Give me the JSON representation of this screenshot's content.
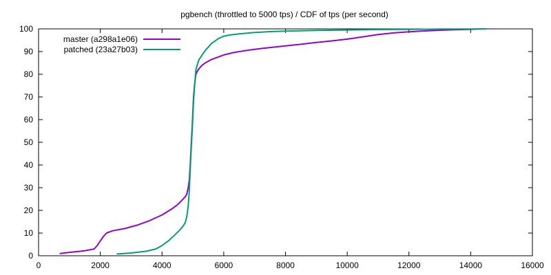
{
  "chart_data": {
    "type": "line",
    "title": "pgbench (throttled to 5000 tps) / CDF of tps (per second)",
    "xlabel": "",
    "ylabel": "",
    "xlim": [
      0,
      16000
    ],
    "ylim": [
      0,
      100
    ],
    "xticks": [
      0,
      2000,
      4000,
      6000,
      8000,
      10000,
      12000,
      14000,
      16000
    ],
    "yticks": [
      0,
      10,
      20,
      30,
      40,
      50,
      60,
      70,
      80,
      90,
      100
    ],
    "grid": false,
    "legend_position": "top-left",
    "series": [
      {
        "name": "master (a298a1e06)",
        "color": "#9400d3",
        "x": [
          700,
          1000,
          1500,
          1800,
          1900,
          2000,
          2100,
          2200,
          2400,
          2800,
          3200,
          3600,
          4000,
          4300,
          4500,
          4650,
          4750,
          4800,
          4850,
          4880,
          4900,
          4920,
          4950,
          4980,
          5000,
          5020,
          5050,
          5080,
          5100,
          5150,
          5200,
          5300,
          5400,
          5600,
          5800,
          6000,
          6300,
          6600,
          7000,
          7500,
          8000,
          8500,
          9000,
          9500,
          10000,
          10500,
          11000,
          11500,
          12000,
          12500,
          13000,
          13500,
          14000,
          14200,
          14500
        ],
        "y": [
          1,
          1.5,
          2.2,
          3,
          4.5,
          6.5,
          8.5,
          10,
          11,
          12,
          13.5,
          15.5,
          18,
          20.5,
          22.5,
          24.5,
          26,
          27,
          30,
          33,
          37,
          42,
          50,
          58,
          64,
          70,
          75,
          78,
          80,
          81.5,
          82.5,
          84,
          85,
          86.5,
          87.5,
          88.5,
          89.5,
          90.2,
          91,
          91.8,
          92.5,
          93.2,
          94,
          94.7,
          95.5,
          96.5,
          97.5,
          98.2,
          98.7,
          99.1,
          99.4,
          99.6,
          99.8,
          99.9,
          100
        ]
      },
      {
        "name": "patched (23a27b03)",
        "color": "#009e73",
        "x": [
          2550,
          3000,
          3500,
          3800,
          4000,
          4200,
          4400,
          4550,
          4650,
          4750,
          4800,
          4850,
          4880,
          4900,
          4920,
          4950,
          4980,
          5000,
          5020,
          5050,
          5080,
          5100,
          5150,
          5200,
          5300,
          5400,
          5500,
          5600,
          5700,
          5800,
          5900,
          6000,
          6200,
          6500,
          7000,
          7500,
          8000,
          9000,
          10000,
          11000,
          12000,
          13000,
          14000,
          14500
        ],
        "y": [
          0.8,
          1.2,
          2,
          3,
          4.5,
          6.5,
          9,
          11,
          12.5,
          14.5,
          17,
          22,
          28,
          34,
          40,
          48,
          56,
          62,
          68,
          74,
          79,
          82,
          84.5,
          86.5,
          88.5,
          90.5,
          92,
          93.5,
          94.5,
          95.5,
          96.2,
          96.8,
          97.3,
          97.8,
          98.4,
          98.8,
          99,
          99.3,
          99.5,
          99.7,
          99.8,
          99.9,
          99.95,
          100
        ]
      }
    ]
  }
}
